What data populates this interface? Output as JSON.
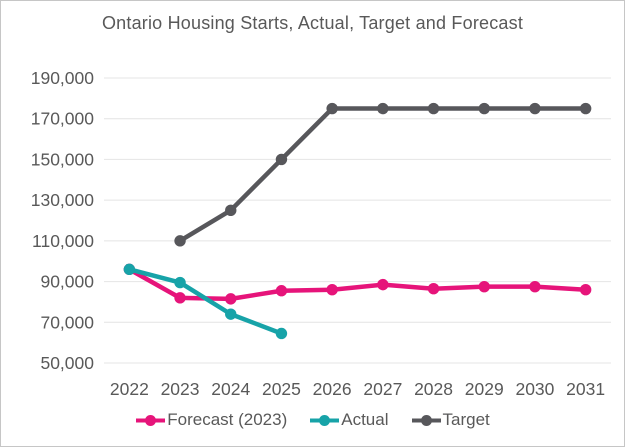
{
  "chart_data": {
    "type": "line",
    "title": "Ontario Housing Starts, Actual, Target and Forecast",
    "categories": [
      "2022",
      "2023",
      "2024",
      "2025",
      "2026",
      "2027",
      "2028",
      "2029",
      "2030",
      "2031"
    ],
    "series": [
      {
        "name": "Forecast (2023)",
        "color": "#E6147A",
        "values": [
          96000,
          82000,
          81500,
          85500,
          86000,
          88500,
          86500,
          87500,
          87500,
          86000
        ]
      },
      {
        "name": "Actual",
        "color": "#17A3A8",
        "values": [
          96000,
          89500,
          74000,
          64500,
          null,
          null,
          null,
          null,
          null,
          null
        ]
      },
      {
        "name": "Target",
        "color": "#57575B",
        "values": [
          null,
          110000,
          125000,
          150000,
          175000,
          175000,
          175000,
          175000,
          175000,
          175000
        ]
      }
    ],
    "xlabel": "",
    "ylabel": "",
    "ylim": [
      50000,
      190000
    ],
    "ytick_step": 20000,
    "yticks": [
      50000,
      70000,
      90000,
      110000,
      130000,
      150000,
      170000,
      190000
    ],
    "ytick_labels": [
      "50,000",
      "70,000",
      "90,000",
      "110,000",
      "130,000",
      "150,000",
      "170,000",
      "190,000"
    ],
    "grid": "horizontal-only",
    "legend_position": "bottom",
    "styles": {
      "text_color": "#595959",
      "grid_color": "#e4e4e4",
      "background": "#ffffff",
      "border_color": "#c6c6c6"
    }
  }
}
